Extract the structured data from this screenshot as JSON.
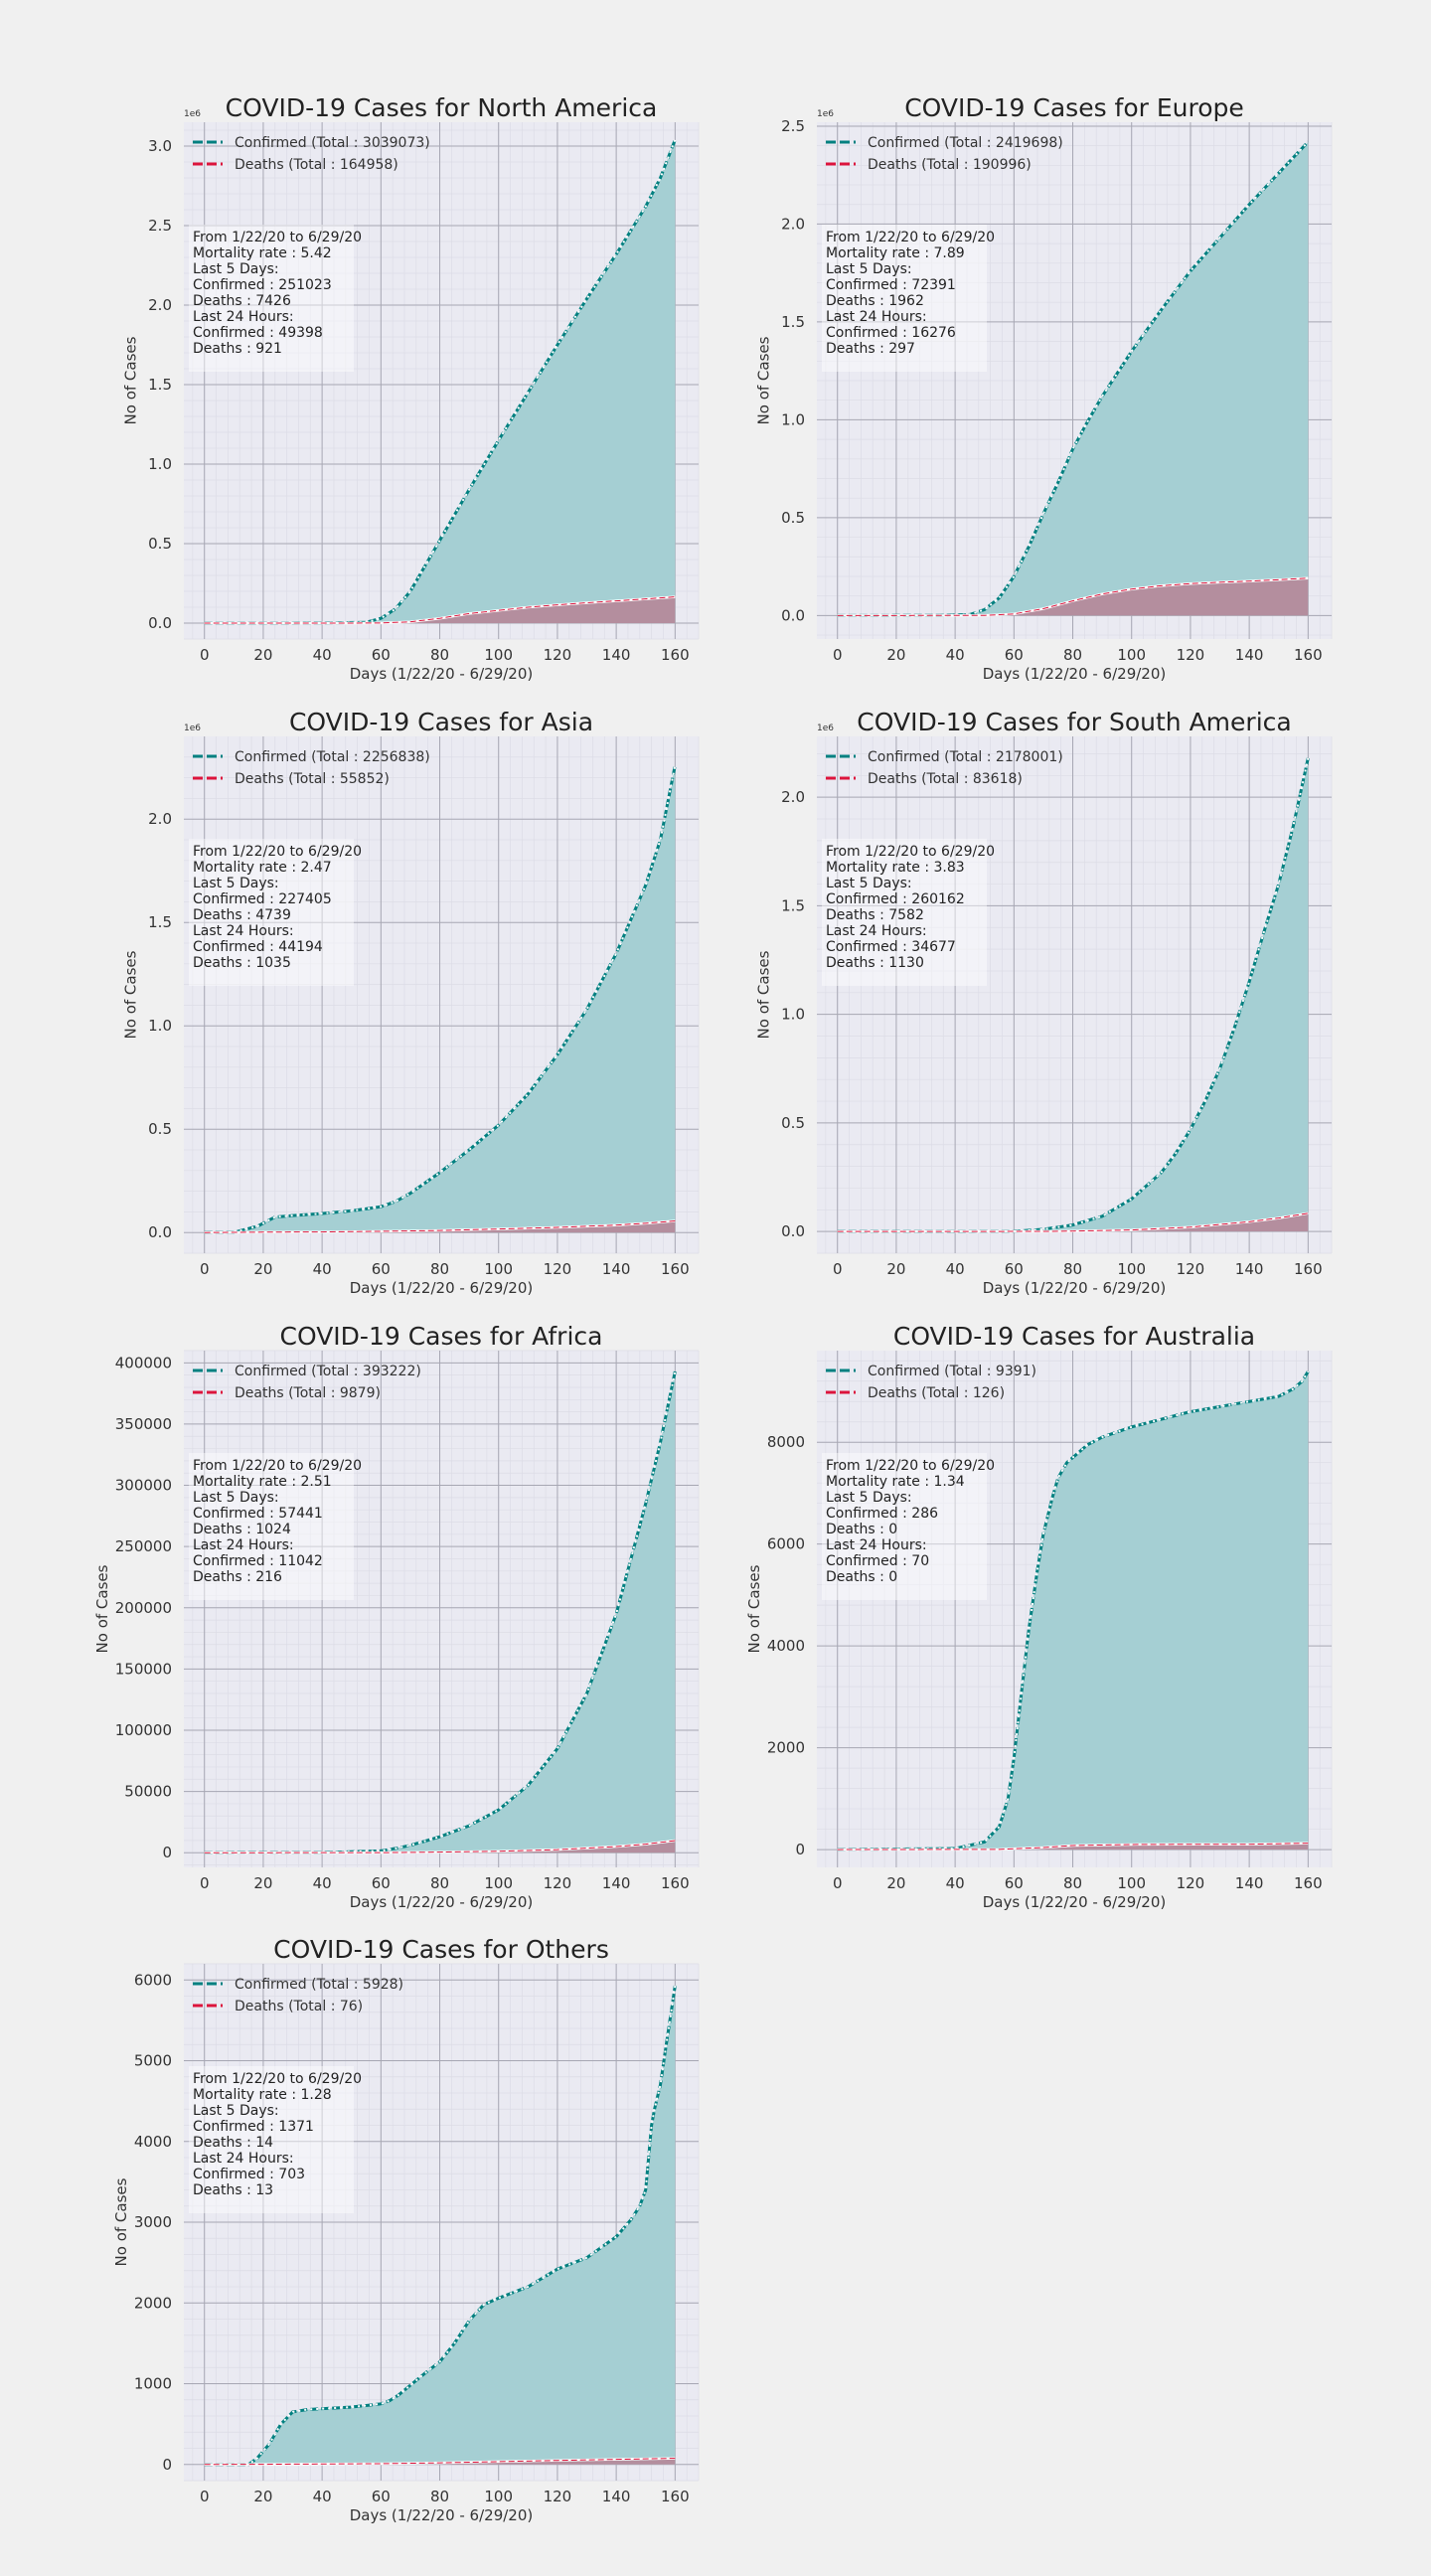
{
  "colors": {
    "figure_bg": "#f0f0f0",
    "plot_bg": "#eaeaf2",
    "grid_major": "#a7a7b3",
    "grid_minor": "#dcdce6",
    "confirmed_line": "#008080",
    "confirmed_fill": "#a5cfd3",
    "deaths_line": "#dc143c",
    "deaths_fill": "#b48e9e"
  },
  "chart_data": [
    {
      "type": "area",
      "title": "COVID-19 Cases for North America",
      "xlabel": "Days (1/22/20 - 6/29/20)",
      "ylabel": "No of Cases",
      "y_multiplier": "1e6",
      "xlim": [
        -7,
        168
      ],
      "ylim": [
        -0.1,
        3.15
      ],
      "xticks": [
        0,
        20,
        40,
        60,
        80,
        100,
        120,
        140,
        160
      ],
      "xtick_labels": [
        "0",
        "20",
        "40",
        "60",
        "80",
        "100",
        "120",
        "140",
        "160"
      ],
      "yticks": [
        0,
        0.5,
        1.0,
        1.5,
        2.0,
        2.5,
        3.0
      ],
      "ytick_labels": [
        "0.0",
        "0.5",
        "1.0",
        "1.5",
        "2.0",
        "2.5",
        "3.0"
      ],
      "legend": [
        "Confirmed (Total : 3039073)",
        "Deaths (Total : 164958)"
      ],
      "legend_position": "upper left",
      "annotation": [
        "From 1/22/20 to 6/29/20",
        "Mortality rate : 5.42",
        "Last 5 Days:",
        "Confirmed : 251023",
        "Deaths : 7426",
        "Last 24 Hours:",
        "Confirmed : 49398",
        "Deaths : 921"
      ],
      "series": [
        {
          "name": "Confirmed (Total : 3039073)",
          "x": [
            0,
            40,
            55,
            60,
            65,
            70,
            80,
            90,
            100,
            110,
            120,
            130,
            140,
            150,
            155,
            160
          ],
          "y": [
            0,
            0.0005,
            0.005,
            0.03,
            0.09,
            0.2,
            0.52,
            0.84,
            1.15,
            1.45,
            1.75,
            2.04,
            2.32,
            2.62,
            2.8,
            3.04
          ]
        },
        {
          "name": "Deaths (Total : 164958)",
          "x": [
            0,
            50,
            60,
            70,
            80,
            90,
            100,
            110,
            120,
            130,
            140,
            150,
            160
          ],
          "y": [
            0,
            0.0001,
            0.001,
            0.008,
            0.03,
            0.06,
            0.08,
            0.1,
            0.115,
            0.128,
            0.14,
            0.152,
            0.165
          ]
        }
      ]
    },
    {
      "type": "area",
      "title": "COVID-19 Cases for Europe",
      "xlabel": "Days (1/22/20 - 6/29/20)",
      "ylabel": "No of Cases",
      "y_multiplier": "1e6",
      "xlim": [
        -7,
        168
      ],
      "ylim": [
        -0.12,
        2.52
      ],
      "xticks": [
        0,
        20,
        40,
        60,
        80,
        100,
        120,
        140,
        160
      ],
      "xtick_labels": [
        "0",
        "20",
        "40",
        "60",
        "80",
        "100",
        "120",
        "140",
        "160"
      ],
      "yticks": [
        0,
        0.5,
        1.0,
        1.5,
        2.0,
        2.5
      ],
      "ytick_labels": [
        "0.0",
        "0.5",
        "1.0",
        "1.5",
        "2.0",
        "2.5"
      ],
      "legend": [
        "Confirmed (Total : 2419698)",
        "Deaths (Total : 190996)"
      ],
      "legend_position": "upper left",
      "annotation": [
        "From 1/22/20 to 6/29/20",
        "Mortality rate : 7.89",
        "Last 5 Days:",
        "Confirmed : 72391",
        "Deaths : 1962",
        "Last 24 Hours:",
        "Confirmed : 16276",
        "Deaths : 297"
      ],
      "series": [
        {
          "name": "Confirmed (Total : 2419698)",
          "x": [
            0,
            35,
            45,
            50,
            55,
            60,
            65,
            70,
            75,
            80,
            85,
            90,
            100,
            110,
            120,
            130,
            140,
            150,
            160
          ],
          "y": [
            0,
            0.0005,
            0.005,
            0.03,
            0.09,
            0.2,
            0.35,
            0.52,
            0.68,
            0.85,
            0.99,
            1.12,
            1.35,
            1.56,
            1.76,
            1.93,
            2.1,
            2.26,
            2.42
          ]
        },
        {
          "name": "Deaths (Total : 190996)",
          "x": [
            0,
            50,
            60,
            70,
            80,
            90,
            100,
            110,
            120,
            130,
            140,
            150,
            160
          ],
          "y": [
            0,
            0.0005,
            0.008,
            0.035,
            0.075,
            0.11,
            0.135,
            0.152,
            0.163,
            0.17,
            0.176,
            0.183,
            0.191
          ]
        }
      ]
    },
    {
      "type": "area",
      "title": "COVID-19 Cases for Asia",
      "xlabel": "Days (1/22/20 - 6/29/20)",
      "ylabel": "No of Cases",
      "y_multiplier": "1e6",
      "xlim": [
        -7,
        168
      ],
      "ylim": [
        -0.1,
        2.4
      ],
      "xticks": [
        0,
        20,
        40,
        60,
        80,
        100,
        120,
        140,
        160
      ],
      "xtick_labels": [
        "0",
        "20",
        "40",
        "60",
        "80",
        "100",
        "120",
        "140",
        "160"
      ],
      "yticks": [
        0,
        0.5,
        1.0,
        1.5,
        2.0
      ],
      "ytick_labels": [
        "0.0",
        "0.5",
        "1.0",
        "1.5",
        "2.0"
      ],
      "legend": [
        "Confirmed (Total : 2256838)",
        "Deaths (Total : 55852)"
      ],
      "legend_position": "upper left",
      "annotation": [
        "From 1/22/20 to 6/29/20",
        "Mortality rate : 2.47",
        "Last 5 Days:",
        "Confirmed : 227405",
        "Deaths : 4739",
        "Last 24 Hours:",
        "Confirmed : 44194",
        "Deaths : 1035"
      ],
      "series": [
        {
          "name": "Confirmed (Total : 2256838)",
          "x": [
            0,
            10,
            18,
            22,
            24,
            30,
            40,
            50,
            60,
            65,
            70,
            80,
            90,
            100,
            110,
            120,
            130,
            140,
            150,
            155,
            160
          ],
          "y": [
            0,
            0.001,
            0.03,
            0.06,
            0.075,
            0.082,
            0.092,
            0.105,
            0.125,
            0.15,
            0.19,
            0.29,
            0.4,
            0.52,
            0.67,
            0.86,
            1.08,
            1.35,
            1.68,
            1.9,
            2.26
          ]
        },
        {
          "name": "Deaths (Total : 55852)",
          "x": [
            0,
            20,
            40,
            60,
            80,
            100,
            120,
            140,
            150,
            160
          ],
          "y": [
            0,
            0.002,
            0.003,
            0.006,
            0.01,
            0.017,
            0.025,
            0.036,
            0.045,
            0.056
          ]
        }
      ]
    },
    {
      "type": "area",
      "title": "COVID-19 Cases for South America",
      "xlabel": "Days (1/22/20 - 6/29/20)",
      "ylabel": "No of Cases",
      "y_multiplier": "1e6",
      "xlim": [
        -7,
        168
      ],
      "ylim": [
        -0.1,
        2.28
      ],
      "xticks": [
        0,
        20,
        40,
        60,
        80,
        100,
        120,
        140,
        160
      ],
      "xtick_labels": [
        "0",
        "20",
        "40",
        "60",
        "80",
        "100",
        "120",
        "140",
        "160"
      ],
      "yticks": [
        0,
        0.5,
        1.0,
        1.5,
        2.0
      ],
      "ytick_labels": [
        "0.0",
        "0.5",
        "1.0",
        "1.5",
        "2.0"
      ],
      "legend": [
        "Confirmed (Total : 2178001)",
        "Deaths (Total : 83618)"
      ],
      "legend_position": "upper left",
      "annotation": [
        "From 1/22/20 to 6/29/20",
        "Mortality rate : 3.83",
        "Last 5 Days:",
        "Confirmed : 260162",
        "Deaths : 7582",
        "Last 24 Hours:",
        "Confirmed : 34677",
        "Deaths : 1130"
      ],
      "series": [
        {
          "name": "Confirmed (Total : 2178001)",
          "x": [
            0,
            40,
            60,
            70,
            80,
            90,
            100,
            110,
            115,
            120,
            125,
            130,
            135,
            140,
            145,
            150,
            155,
            160
          ],
          "y": [
            0,
            0.0001,
            0.001,
            0.01,
            0.03,
            0.07,
            0.15,
            0.27,
            0.36,
            0.47,
            0.6,
            0.75,
            0.94,
            1.15,
            1.38,
            1.6,
            1.87,
            2.18
          ]
        },
        {
          "name": "Deaths (Total : 83618)",
          "x": [
            0,
            70,
            80,
            100,
            120,
            140,
            150,
            160
          ],
          "y": [
            0,
            0.0005,
            0.002,
            0.007,
            0.02,
            0.045,
            0.062,
            0.084
          ]
        }
      ]
    },
    {
      "type": "area",
      "title": "COVID-19 Cases for Africa",
      "xlabel": "Days (1/22/20 - 6/29/20)",
      "ylabel": "No of Cases",
      "xlim": [
        -7,
        168
      ],
      "ylim": [
        -12000,
        410000
      ],
      "xticks": [
        0,
        20,
        40,
        60,
        80,
        100,
        120,
        140,
        160
      ],
      "xtick_labels": [
        "0",
        "20",
        "40",
        "60",
        "80",
        "100",
        "120",
        "140",
        "160"
      ],
      "yticks": [
        0,
        50000,
        100000,
        150000,
        200000,
        250000,
        300000,
        350000,
        400000
      ],
      "ytick_labels": [
        "0",
        "50000",
        "100000",
        "150000",
        "200000",
        "250000",
        "300000",
        "350000",
        "400000"
      ],
      "legend": [
        "Confirmed (Total : 393222)",
        "Deaths (Total : 9879)"
      ],
      "legend_position": "upper left",
      "annotation": [
        "From 1/22/20 to 6/29/20",
        "Mortality rate : 2.51",
        "Last 5 Days:",
        "Confirmed : 57441",
        "Deaths : 1024",
        "Last 24 Hours:",
        "Confirmed : 11042",
        "Deaths : 216"
      ],
      "series": [
        {
          "name": "Confirmed (Total : 393222)",
          "x": [
            0,
            40,
            60,
            65,
            70,
            80,
            90,
            100,
            110,
            120,
            130,
            140,
            145,
            150,
            155,
            160
          ],
          "y": [
            0,
            100,
            1500,
            3500,
            6000,
            13000,
            22000,
            35000,
            55000,
            85000,
            130000,
            195000,
            240000,
            285000,
            335000,
            393000
          ]
        },
        {
          "name": "Deaths (Total : 9879)",
          "x": [
            0,
            60,
            80,
            100,
            120,
            140,
            150,
            160
          ],
          "y": [
            0,
            50,
            500,
            1200,
            2500,
            5000,
            7000,
            9900
          ]
        }
      ]
    },
    {
      "type": "area",
      "title": "COVID-19 Cases for Australia",
      "xlabel": "Days (1/22/20 - 6/29/20)",
      "ylabel": "No of Cases",
      "xlim": [
        -7,
        168
      ],
      "ylim": [
        -350,
        9800
      ],
      "xticks": [
        0,
        20,
        40,
        60,
        80,
        100,
        120,
        140,
        160
      ],
      "xtick_labels": [
        "0",
        "20",
        "40",
        "60",
        "80",
        "100",
        "120",
        "140",
        "160"
      ],
      "yticks": [
        0,
        2000,
        4000,
        6000,
        8000
      ],
      "ytick_labels": [
        "0",
        "2000",
        "4000",
        "6000",
        "8000"
      ],
      "legend": [
        "Confirmed (Total : 9391)",
        "Deaths (Total : 126)"
      ],
      "legend_position": "upper left",
      "annotation": [
        "From 1/22/20 to 6/29/20",
        "Mortality rate : 1.34",
        "Last 5 Days:",
        "Confirmed : 286",
        "Deaths : 0",
        "Last 24 Hours:",
        "Confirmed : 70",
        "Deaths : 0"
      ],
      "series": [
        {
          "name": "Confirmed (Total : 9391)",
          "x": [
            0,
            40,
            50,
            55,
            58,
            60,
            62,
            65,
            68,
            70,
            73,
            75,
            78,
            80,
            85,
            90,
            100,
            110,
            120,
            130,
            140,
            150,
            155,
            158,
            160
          ],
          "y": [
            0,
            20,
            150,
            450,
            1000,
            1800,
            2800,
            4300,
            5500,
            6200,
            6900,
            7300,
            7600,
            7700,
            7950,
            8100,
            8300,
            8450,
            8600,
            8700,
            8800,
            8900,
            9050,
            9200,
            9391
          ]
        },
        {
          "name": "Deaths (Total : 126)",
          "x": [
            0,
            55,
            70,
            80,
            100,
            120,
            140,
            160
          ],
          "y": [
            0,
            5,
            40,
            80,
            100,
            104,
            105,
            126
          ]
        }
      ]
    },
    {
      "type": "area",
      "title": "COVID-19 Cases for Others",
      "xlabel": "Days (1/22/20 - 6/29/20)",
      "ylabel": "No of Cases",
      "xlim": [
        -7,
        168
      ],
      "ylim": [
        -200,
        6200
      ],
      "xticks": [
        0,
        20,
        40,
        60,
        80,
        100,
        120,
        140,
        160
      ],
      "xtick_labels": [
        "0",
        "20",
        "40",
        "60",
        "80",
        "100",
        "120",
        "140",
        "160"
      ],
      "yticks": [
        0,
        1000,
        2000,
        3000,
        4000,
        5000,
        6000
      ],
      "ytick_labels": [
        "0",
        "1000",
        "2000",
        "3000",
        "4000",
        "5000",
        "6000"
      ],
      "legend": [
        "Confirmed (Total : 5928)",
        "Deaths (Total : 76)"
      ],
      "legend_position": "upper left",
      "annotation": [
        "From 1/22/20 to 6/29/20",
        "Mortality rate : 1.28",
        "Last 5 Days:",
        "Confirmed : 1371",
        "Deaths : 14",
        "Last 24 Hours:",
        "Confirmed : 703",
        "Deaths : 13"
      ],
      "series": [
        {
          "name": "Confirmed (Total : 5928)",
          "x": [
            0,
            15,
            18,
            22,
            26,
            30,
            35,
            40,
            50,
            60,
            63,
            66,
            70,
            75,
            80,
            85,
            90,
            95,
            100,
            110,
            120,
            130,
            140,
            145,
            148,
            150,
            152,
            153,
            155,
            157,
            160
          ],
          "y": [
            0,
            0,
            80,
            250,
            500,
            650,
            680,
            690,
            710,
            750,
            790,
            860,
            980,
            1130,
            1270,
            1500,
            1780,
            1980,
            2060,
            2200,
            2420,
            2560,
            2820,
            3030,
            3200,
            3400,
            4200,
            4400,
            4700,
            5200,
            5928
          ]
        },
        {
          "name": "Deaths (Total : 76)",
          "x": [
            0,
            20,
            40,
            60,
            80,
            100,
            120,
            140,
            160
          ],
          "y": [
            0,
            2,
            6,
            10,
            20,
            35,
            50,
            63,
            76
          ]
        }
      ]
    }
  ]
}
